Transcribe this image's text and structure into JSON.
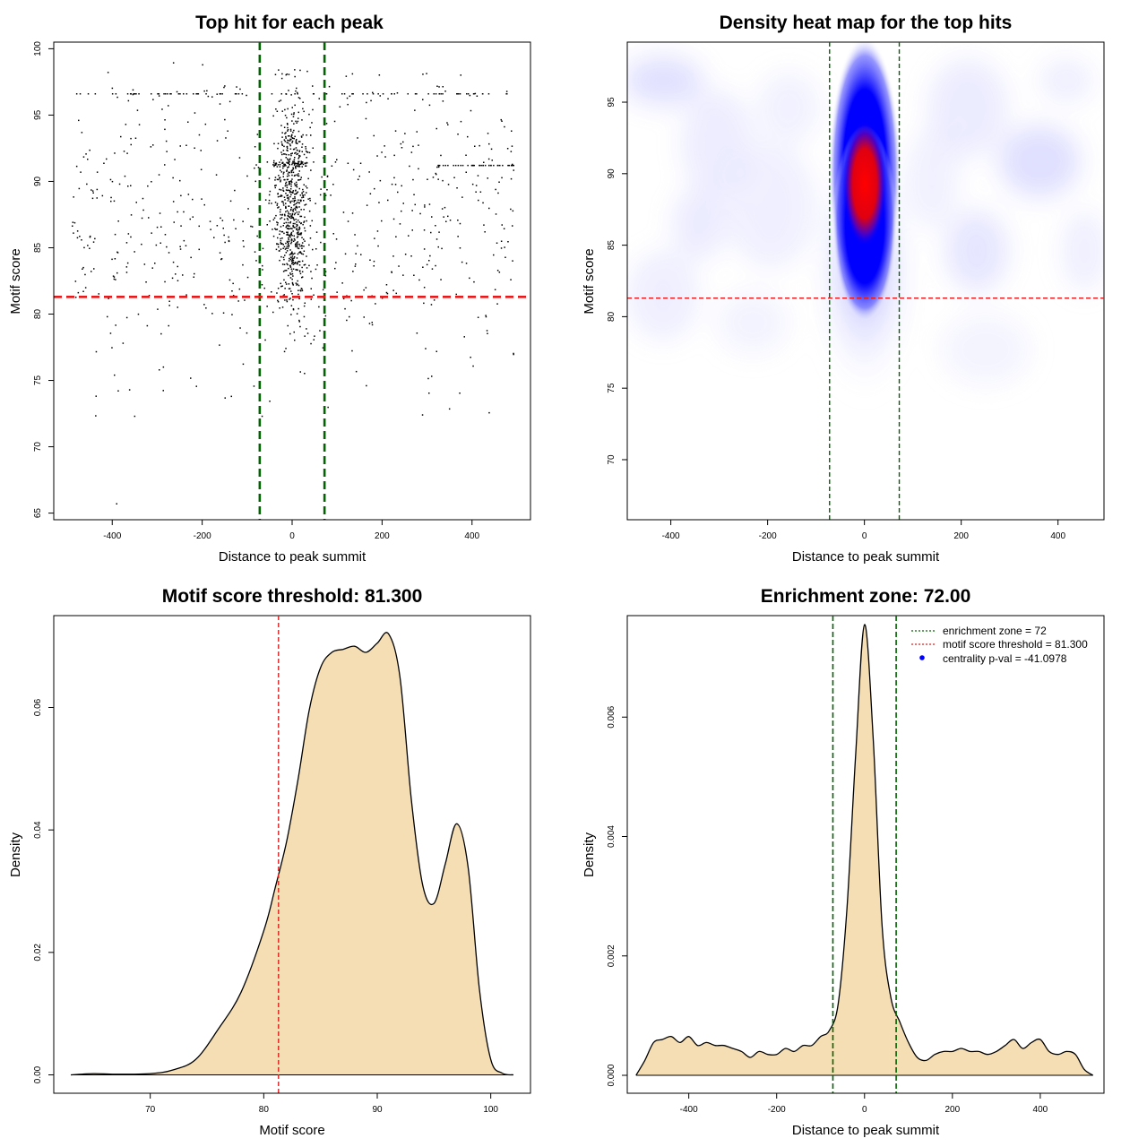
{
  "chart_data": [
    {
      "type": "scatter",
      "title": "Top hit for each peak",
      "xlabel": "Distance to peak summit",
      "ylabel": "Motif score",
      "xlim": [
        -530,
        530
      ],
      "ylim": [
        64.5,
        100.5
      ],
      "xticks": [
        "-400",
        "-200",
        "0",
        "200",
        "400"
      ],
      "yticks": [
        "65",
        "70",
        "75",
        "80",
        "85",
        "90",
        "95",
        "100"
      ],
      "vlines": [
        -72,
        72
      ],
      "hline": 81.3,
      "colors": {
        "points": "#000000",
        "vline": "#006400",
        "hline": "#e41a1c"
      },
      "points_summary": {
        "count": 1500,
        "x_range": [
          -490,
          495
        ],
        "y_range": [
          65.7,
          99.0
        ],
        "center_cluster": {
          "x": 0,
          "y": 88
        }
      }
    },
    {
      "type": "heatmap",
      "title": "Density heat map for the top hits",
      "xlabel": "Distance to peak summit",
      "ylabel": "Motif score",
      "xlim": [
        -490,
        495
      ],
      "ylim": [
        65.8,
        99.2
      ],
      "xticks": [
        "-400",
        "-200",
        "0",
        "200",
        "400"
      ],
      "yticks": [
        "70",
        "75",
        "80",
        "85",
        "90",
        "95"
      ],
      "vlines": [
        -72,
        72
      ],
      "hline": 81.3,
      "peak": {
        "x": 0,
        "y": 88.5
      },
      "colors": {
        "low": "#ffffff",
        "mid": "#0000ff",
        "high": "#ff0000",
        "vline": "#006400",
        "hline": "#e41a1c"
      }
    },
    {
      "type": "area",
      "title": "Motif score threshold: 81.300",
      "xlabel": "Motif score",
      "ylabel": "Density",
      "xlim": [
        61.5,
        103.5
      ],
      "ylim": [
        -0.003,
        0.075
      ],
      "xticks": [
        "70",
        "80",
        "90",
        "100"
      ],
      "yticks": [
        "0.00",
        "0.02",
        "0.04",
        "0.06"
      ],
      "vline": 81.3,
      "x": [
        63,
        65,
        67,
        70,
        72,
        74,
        76,
        78,
        80,
        81,
        82,
        83,
        84,
        85,
        86,
        87,
        88,
        89,
        90,
        91,
        92,
        93,
        94,
        95,
        96,
        97,
        98,
        99,
        100,
        101,
        102
      ],
      "y": [
        0.0,
        0.0002,
        0.0001,
        0.0002,
        0.0008,
        0.0025,
        0.0075,
        0.0135,
        0.0235,
        0.0305,
        0.038,
        0.048,
        0.0595,
        0.0665,
        0.069,
        0.0695,
        0.07,
        0.069,
        0.0705,
        0.072,
        0.065,
        0.045,
        0.031,
        0.028,
        0.0345,
        0.041,
        0.034,
        0.014,
        0.0025,
        0.0003,
        0.0
      ],
      "colors": {
        "fill": "#f5deb3",
        "line": "#000000",
        "vline": "#e41a1c"
      }
    },
    {
      "type": "area",
      "title": "Enrichment zone: 72.00",
      "xlabel": "Distance to peak summit",
      "ylabel": "Density",
      "xlim": [
        -540,
        545
      ],
      "ylim": [
        -0.0003,
        0.0077
      ],
      "xticks": [
        "-400",
        "-200",
        "0",
        "200",
        "400"
      ],
      "yticks": [
        "0.000",
        "0.002",
        "0.004",
        "0.006"
      ],
      "vlines": [
        -72,
        72
      ],
      "x": [
        -520,
        -500,
        -480,
        -460,
        -440,
        -420,
        -400,
        -380,
        -360,
        -340,
        -320,
        -300,
        -280,
        -260,
        -240,
        -220,
        -200,
        -180,
        -160,
        -140,
        -120,
        -100,
        -80,
        -60,
        -40,
        -20,
        0,
        20,
        40,
        60,
        80,
        100,
        120,
        140,
        160,
        180,
        200,
        220,
        240,
        260,
        280,
        300,
        320,
        340,
        360,
        380,
        400,
        420,
        440,
        460,
        480,
        500,
        520
      ],
      "y": [
        0.0,
        0.00025,
        0.00055,
        0.0006,
        0.00065,
        0.00055,
        0.00065,
        0.0005,
        0.00055,
        0.0005,
        0.0005,
        0.00045,
        0.0004,
        0.0003,
        0.0004,
        0.00035,
        0.00035,
        0.00045,
        0.0004,
        0.0005,
        0.0005,
        0.00065,
        0.00075,
        0.0012,
        0.0028,
        0.0054,
        0.00755,
        0.0056,
        0.0025,
        0.0013,
        0.0009,
        0.00055,
        0.0003,
        0.00025,
        0.00035,
        0.0004,
        0.0004,
        0.00045,
        0.0004,
        0.0004,
        0.00035,
        0.0004,
        0.0005,
        0.0006,
        0.00045,
        0.00055,
        0.0006,
        0.0004,
        0.00035,
        0.0004,
        0.00035,
        0.0001,
        0.0
      ],
      "legend": [
        {
          "label": "enrichment zone = 72",
          "kind": "line",
          "color": "#006400"
        },
        {
          "label": "motif score threshold = 81.300",
          "kind": "line",
          "color": "#e41a1c"
        },
        {
          "label": "centrality p-val = -41.0978",
          "kind": "point",
          "color": "#0000ff"
        }
      ],
      "legend_position": "top-right",
      "colors": {
        "fill": "#f5deb3",
        "line": "#000000",
        "vline": "#006400"
      }
    }
  ]
}
